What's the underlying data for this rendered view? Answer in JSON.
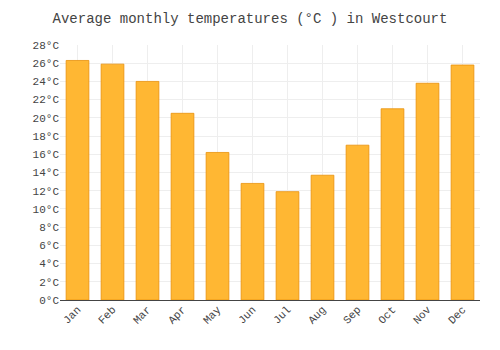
{
  "chart_data": {
    "type": "bar",
    "title": "Average monthly temperatures (°C ) in Westcourt",
    "categories": [
      "Jan",
      "Feb",
      "Mar",
      "Apr",
      "May",
      "Jun",
      "Jul",
      "Aug",
      "Sep",
      "Oct",
      "Nov",
      "Dec"
    ],
    "values": [
      26.3,
      25.9,
      24.0,
      20.5,
      16.2,
      12.8,
      11.9,
      13.7,
      17.0,
      21.0,
      23.8,
      25.8
    ],
    "color": "#FFB733",
    "ylim": [
      0,
      28
    ],
    "yticks": [
      {
        "value": 0,
        "label": "0°C"
      },
      {
        "value": 2,
        "label": "2°C"
      },
      {
        "value": 4,
        "label": "4°C"
      },
      {
        "value": 6,
        "label": "6°C"
      },
      {
        "value": 8,
        "label": "8°C"
      },
      {
        "value": 10,
        "label": "10°C"
      },
      {
        "value": 12,
        "label": "12°C"
      },
      {
        "value": 14,
        "label": "14°C"
      },
      {
        "value": 16,
        "label": "16°C"
      },
      {
        "value": 18,
        "label": "18°C"
      },
      {
        "value": 20,
        "label": "20°C"
      },
      {
        "value": 22,
        "label": "22°C"
      },
      {
        "value": 24,
        "label": "24°C"
      },
      {
        "value": 26,
        "label": "26°C"
      },
      {
        "value": 28,
        "label": "28°C"
      }
    ],
    "grid": true
  }
}
